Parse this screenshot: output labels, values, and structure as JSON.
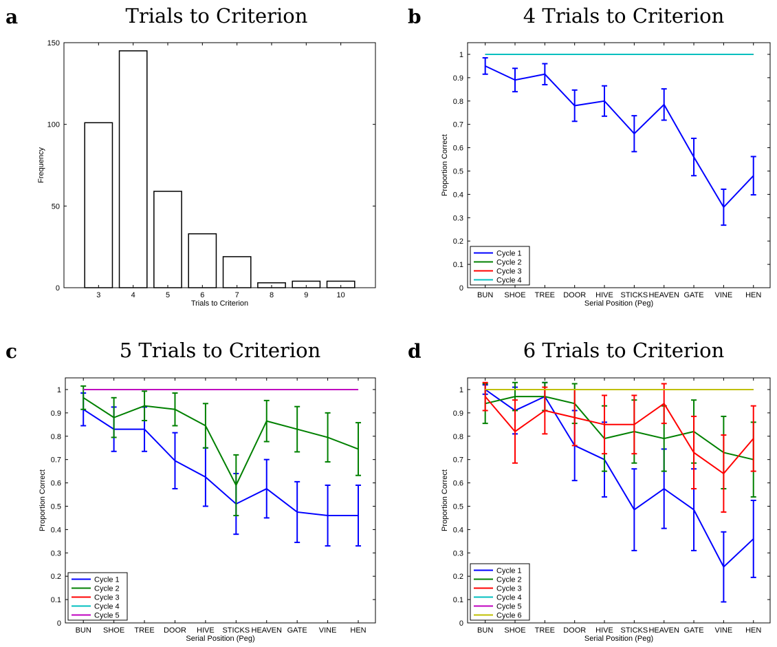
{
  "chart_data": [
    {
      "panel": "a",
      "type": "bar",
      "title": "Trials to Criterion",
      "xlabel": "Trials to Criterion",
      "ylabel": "Frequency",
      "categories": [
        "3",
        "4",
        "5",
        "6",
        "7",
        "8",
        "9",
        "10"
      ],
      "values": [
        101,
        145,
        59,
        33,
        19,
        3,
        4,
        4
      ],
      "xlim": [
        2,
        11
      ],
      "ylim": [
        0,
        150
      ],
      "yticks": [
        0,
        50,
        100,
        150
      ],
      "grid": false
    },
    {
      "panel": "b",
      "type": "line",
      "title": "4 Trials to Criterion",
      "xlabel": "Serial Position (Peg)",
      "ylabel": "Proportion Correct",
      "categories": [
        "BUN",
        "SHOE",
        "TREE",
        "DOOR",
        "HIVE",
        "STICKS",
        "HEAVEN",
        "GATE",
        "VINE",
        "HEN"
      ],
      "ylim": [
        0,
        1.05
      ],
      "yticks": [
        0,
        0.1,
        0.2,
        0.3,
        0.4,
        0.5,
        0.6,
        0.7,
        0.8,
        0.9,
        1
      ],
      "legend_position": "bottom-left",
      "grid": false,
      "series": [
        {
          "name": "Cycle 1",
          "color": "#0000ff",
          "values": [
            0.95,
            0.89,
            0.915,
            0.78,
            0.8,
            0.66,
            0.785,
            0.56,
            0.345,
            0.48
          ],
          "err": [
            0.035,
            0.05,
            0.045,
            0.067,
            0.065,
            0.077,
            0.067,
            0.08,
            0.077,
            0.082
          ]
        },
        {
          "name": "Cycle 2",
          "color": "#008000",
          "values": [
            1,
            1,
            1,
            1,
            1,
            1,
            1,
            1,
            1,
            1
          ]
        },
        {
          "name": "Cycle 3",
          "color": "#ff0000",
          "values": [
            1,
            1,
            1,
            1,
            1,
            1,
            1,
            1,
            1,
            1
          ]
        },
        {
          "name": "Cycle 4",
          "color": "#00bfbf",
          "values": [
            1,
            1,
            1,
            1,
            1,
            1,
            1,
            1,
            1,
            1
          ]
        }
      ]
    },
    {
      "panel": "c",
      "type": "line",
      "title": "5 Trials to Criterion",
      "xlabel": "Serial Position (Peg)",
      "ylabel": "Proportion Correct",
      "categories": [
        "BUN",
        "SHOE",
        "TREE",
        "DOOR",
        "HIVE",
        "STICKS",
        "HEAVEN",
        "GATE",
        "VINE",
        "HEN"
      ],
      "ylim": [
        0,
        1.05
      ],
      "yticks": [
        0,
        0.1,
        0.2,
        0.3,
        0.4,
        0.5,
        0.6,
        0.7,
        0.8,
        0.9,
        1
      ],
      "legend_position": "bottom-left",
      "grid": false,
      "series": [
        {
          "name": "Cycle 1",
          "color": "#0000ff",
          "values": [
            0.915,
            0.83,
            0.83,
            0.695,
            0.625,
            0.51,
            0.575,
            0.475,
            0.46,
            0.46
          ],
          "err": [
            0.07,
            0.095,
            0.095,
            0.12,
            0.125,
            0.13,
            0.125,
            0.13,
            0.13,
            0.13
          ]
        },
        {
          "name": "Cycle 2",
          "color": "#008000",
          "values": [
            0.965,
            0.88,
            0.93,
            0.915,
            0.845,
            0.59,
            0.865,
            0.83,
            0.795,
            0.745
          ],
          "err": [
            0.05,
            0.085,
            0.063,
            0.07,
            0.095,
            0.13,
            0.088,
            0.097,
            0.105,
            0.113
          ]
        },
        {
          "name": "Cycle 3",
          "color": "#ff0000",
          "values": [
            1,
            1,
            1,
            1,
            1,
            1,
            1,
            1,
            1,
            1
          ]
        },
        {
          "name": "Cycle 4",
          "color": "#00bfbf",
          "values": [
            1,
            1,
            1,
            1,
            1,
            1,
            1,
            1,
            1,
            1
          ]
        },
        {
          "name": "Cycle 5",
          "color": "#bf00bf",
          "values": [
            1,
            1,
            1,
            1,
            1,
            1,
            1,
            1,
            1,
            1
          ]
        }
      ]
    },
    {
      "panel": "d",
      "type": "line",
      "title": "6 Trials to Criterion",
      "xlabel": "Serial Position (Peg)",
      "ylabel": "Proportion Correct",
      "categories": [
        "BUN",
        "SHOE",
        "TREE",
        "DOOR",
        "HIVE",
        "STICKS",
        "HEAVEN",
        "GATE",
        "VINE",
        "HEN"
      ],
      "ylim": [
        0,
        1.05
      ],
      "yticks": [
        0,
        0.1,
        0.2,
        0.3,
        0.4,
        0.5,
        0.6,
        0.7,
        0.8,
        0.9,
        1
      ],
      "legend_position": "bottom-left",
      "grid": false,
      "series": [
        {
          "name": "Cycle 1",
          "color": "#0000ff",
          "values": [
            1.0,
            0.91,
            0.97,
            0.76,
            0.7,
            0.485,
            0.575,
            0.485,
            0.24,
            0.36
          ],
          "err": [
            0.02,
            0.1,
            0.06,
            0.15,
            0.16,
            0.175,
            0.17,
            0.175,
            0.15,
            0.165
          ]
        },
        {
          "name": "Cycle 2",
          "color": "#008000",
          "values": [
            0.94,
            0.97,
            0.97,
            0.94,
            0.79,
            0.82,
            0.79,
            0.82,
            0.73,
            0.7
          ],
          "err": [
            0.085,
            0.06,
            0.06,
            0.085,
            0.14,
            0.135,
            0.14,
            0.135,
            0.155,
            0.16
          ]
        },
        {
          "name": "Cycle 3",
          "color": "#ff0000",
          "values": [
            0.97,
            0.82,
            0.91,
            0.88,
            0.85,
            0.85,
            0.94,
            0.73,
            0.64,
            0.79
          ],
          "err": [
            0.06,
            0.135,
            0.1,
            0.12,
            0.125,
            0.125,
            0.085,
            0.155,
            0.165,
            0.14
          ]
        },
        {
          "name": "Cycle 4",
          "color": "#00bfbf",
          "values": [
            1,
            1,
            1,
            1,
            1,
            1,
            1,
            1,
            1,
            1
          ]
        },
        {
          "name": "Cycle 5",
          "color": "#bf00bf",
          "values": [
            1,
            1,
            1,
            1,
            1,
            1,
            1,
            1,
            1,
            1
          ]
        },
        {
          "name": "Cycle 6",
          "color": "#bfbf00",
          "values": [
            1,
            1,
            1,
            1,
            1,
            1,
            1,
            1,
            1,
            1
          ]
        }
      ]
    }
  ]
}
